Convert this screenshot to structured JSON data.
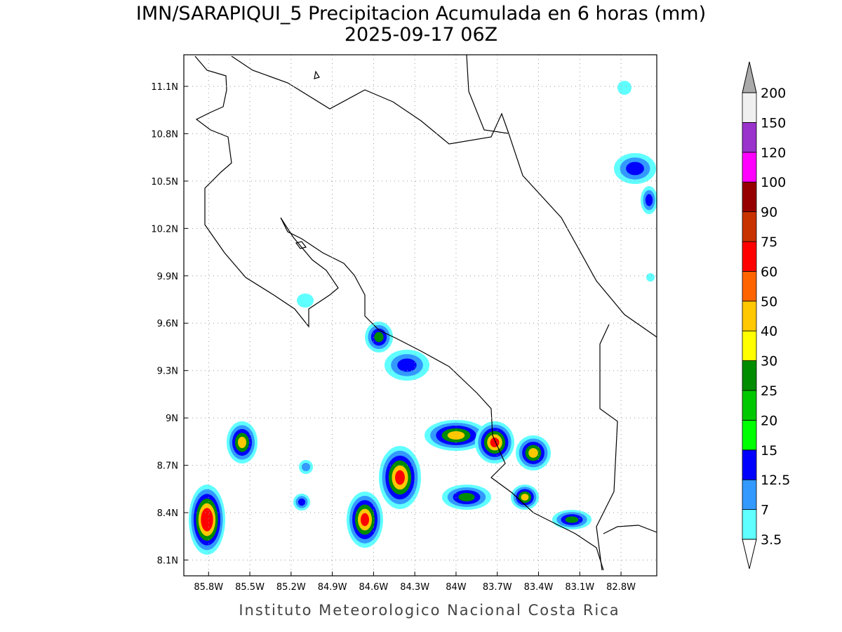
{
  "title": "IMN/SARAPIQUI_5 Precipitacion Acumulada en 6 horas (mm)",
  "subtitle": "2025-09-17 06Z",
  "footer": "Instituto Meteorologico Nacional Costa Rica",
  "map": {
    "xlim": [
      -85.98,
      -82.54
    ],
    "ylim": [
      8.0,
      11.3
    ],
    "xticks": [
      {
        "value": -85.8,
        "label": "85.8W"
      },
      {
        "value": -85.5,
        "label": "85.5W"
      },
      {
        "value": -85.2,
        "label": "85.2W"
      },
      {
        "value": -84.9,
        "label": "84.9W"
      },
      {
        "value": -84.6,
        "label": "84.6W"
      },
      {
        "value": -84.3,
        "label": "84.3W"
      },
      {
        "value": -84.0,
        "label": "84W"
      },
      {
        "value": -83.7,
        "label": "83.7W"
      },
      {
        "value": -83.4,
        "label": "83.4W"
      },
      {
        "value": -83.1,
        "label": "83.1W"
      },
      {
        "value": -82.8,
        "label": "82.8W"
      }
    ],
    "yticks": [
      {
        "value": 8.1,
        "label": "8.1N"
      },
      {
        "value": 8.4,
        "label": "8.4N"
      },
      {
        "value": 8.7,
        "label": "8.7N"
      },
      {
        "value": 9.0,
        "label": "9N"
      },
      {
        "value": 9.3,
        "label": "9.3N"
      },
      {
        "value": 9.6,
        "label": "9.6N"
      },
      {
        "value": 9.9,
        "label": "9.9N"
      },
      {
        "value": 10.2,
        "label": "10.2N"
      },
      {
        "value": 10.5,
        "label": "10.5N"
      },
      {
        "value": 10.8,
        "label": "10.8N"
      },
      {
        "value": 11.1,
        "label": "11.1N"
      }
    ],
    "grid": true
  },
  "colorbar": {
    "levels": [
      3.5,
      7,
      12.5,
      15,
      20,
      25,
      30,
      40,
      50,
      60,
      75,
      90,
      100,
      120,
      150,
      200
    ],
    "colors": [
      "#60ffff",
      "#3399ff",
      "#0000ff",
      "#00ff00",
      "#00c800",
      "#008c00",
      "#ffff00",
      "#ffc800",
      "#ff6400",
      "#ff0000",
      "#c83200",
      "#960000",
      "#ff00ff",
      "#9933cc",
      "#f0f0f0"
    ],
    "under_color": "#ffffff",
    "over_color": "#aaaaaa"
  }
}
